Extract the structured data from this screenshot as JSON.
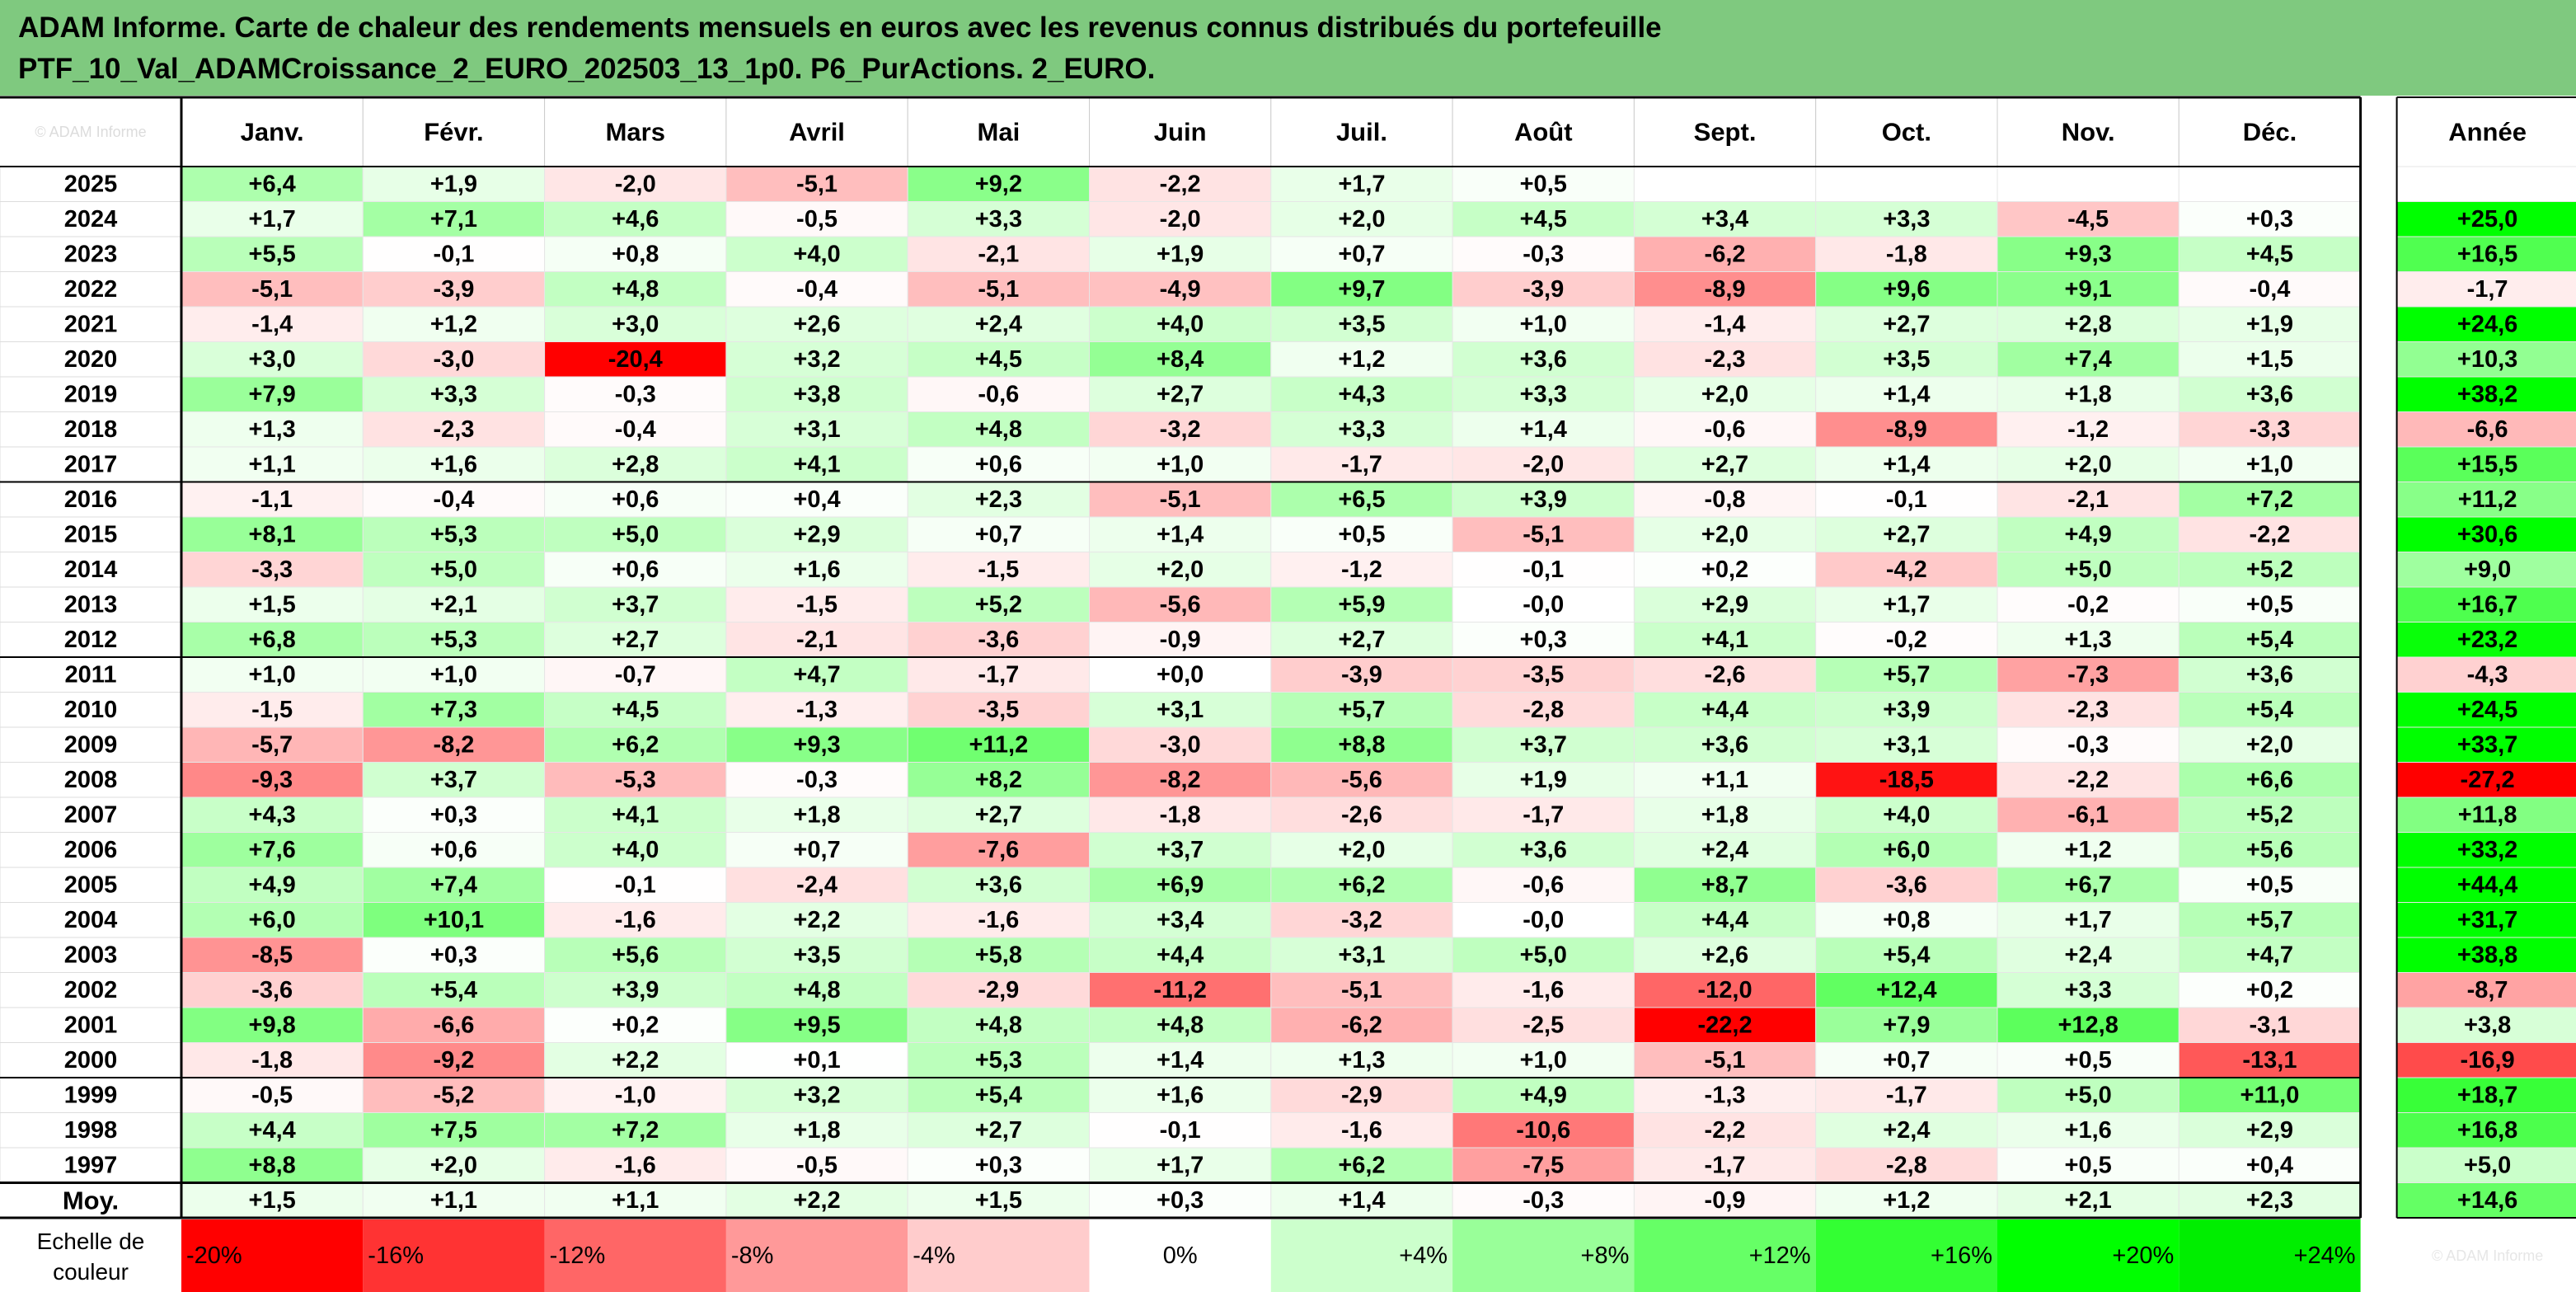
{
  "title": {
    "line1": "ADAM Informe. Carte de chaleur des rendements mensuels en euros avec les revenus connus distribués du portefeuille",
    "line2": "PTF_10_Val_ADAMCroissance_2_EURO_202503_13_1p0. P6_PurActions. 2_EURO."
  },
  "chart_data": {
    "type": "heatmap",
    "columns": [
      "Janv.",
      "Févr.",
      "Mars",
      "Avril",
      "Mai",
      "Juin",
      "Juil.",
      "Août",
      "Sept.",
      "Oct.",
      "Nov.",
      "Déc."
    ],
    "year_column": "Année",
    "corner_watermark": "© ADAM Informe",
    "rows": [
      {
        "year": "2025",
        "values": [
          "+6,4",
          "+1,9",
          "-2,0",
          "-5,1",
          "+9,2",
          "-2,2",
          "+1,7",
          "+0,5",
          "",
          "",
          "",
          ""
        ],
        "annual": ""
      },
      {
        "year": "2024",
        "values": [
          "+1,7",
          "+7,1",
          "+4,6",
          "-0,5",
          "+3,3",
          "-2,0",
          "+2,0",
          "+4,5",
          "+3,4",
          "+3,3",
          "-4,5",
          "+0,3"
        ],
        "annual": "+25,0"
      },
      {
        "year": "2023",
        "values": [
          "+5,5",
          "-0,1",
          "+0,8",
          "+4,0",
          "-2,1",
          "+1,9",
          "+0,7",
          "-0,3",
          "-6,2",
          "-1,8",
          "+9,3",
          "+4,5"
        ],
        "annual": "+16,5"
      },
      {
        "year": "2022",
        "values": [
          "-5,1",
          "-3,9",
          "+4,8",
          "-0,4",
          "-5,1",
          "-4,9",
          "+9,7",
          "-3,9",
          "-8,9",
          "+9,6",
          "+9,1",
          "-0,4"
        ],
        "annual": "-1,7"
      },
      {
        "year": "2021",
        "values": [
          "-1,4",
          "+1,2",
          "+3,0",
          "+2,6",
          "+2,4",
          "+4,0",
          "+3,5",
          "+1,0",
          "-1,4",
          "+2,7",
          "+2,8",
          "+1,9"
        ],
        "annual": "+24,6"
      },
      {
        "year": "2020",
        "values": [
          "+3,0",
          "-3,0",
          "-20,4",
          "+3,2",
          "+4,5",
          "+8,4",
          "+1,2",
          "+3,6",
          "-2,3",
          "+3,5",
          "+7,4",
          "+1,5"
        ],
        "annual": "+10,3"
      },
      {
        "year": "2019",
        "values": [
          "+7,9",
          "+3,3",
          "-0,3",
          "+3,8",
          "-0,6",
          "+2,7",
          "+4,3",
          "+3,3",
          "+2,0",
          "+1,4",
          "+1,8",
          "+3,6"
        ],
        "annual": "+38,2"
      },
      {
        "year": "2018",
        "values": [
          "+1,3",
          "-2,3",
          "-0,4",
          "+3,1",
          "+4,8",
          "-3,2",
          "+3,3",
          "+1,4",
          "-0,6",
          "-8,9",
          "-1,2",
          "-3,3"
        ],
        "annual": "-6,6"
      },
      {
        "year": "2017",
        "values": [
          "+1,1",
          "+1,6",
          "+2,8",
          "+4,1",
          "+0,6",
          "+1,0",
          "-1,7",
          "-2,0",
          "+2,7",
          "+1,4",
          "+2,0",
          "+1,0"
        ],
        "annual": "+15,5"
      },
      {
        "year": "2016",
        "values": [
          "-1,1",
          "-0,4",
          "+0,6",
          "+0,4",
          "+2,3",
          "-5,1",
          "+6,5",
          "+3,9",
          "-0,8",
          "-0,1",
          "-2,1",
          "+7,2"
        ],
        "annual": "+11,2"
      },
      {
        "year": "2015",
        "values": [
          "+8,1",
          "+5,3",
          "+5,0",
          "+2,9",
          "+0,7",
          "+1,4",
          "+0,5",
          "-5,1",
          "+2,0",
          "+2,7",
          "+4,9",
          "-2,2"
        ],
        "annual": "+30,6"
      },
      {
        "year": "2014",
        "values": [
          "-3,3",
          "+5,0",
          "+0,6",
          "+1,6",
          "-1,5",
          "+2,0",
          "-1,2",
          "-0,1",
          "+0,2",
          "-4,2",
          "+5,0",
          "+5,2"
        ],
        "annual": "+9,0"
      },
      {
        "year": "2013",
        "values": [
          "+1,5",
          "+2,1",
          "+3,7",
          "-1,5",
          "+5,2",
          "-5,6",
          "+5,9",
          "-0,0",
          "+2,9",
          "+1,7",
          "-0,2",
          "+0,5"
        ],
        "annual": "+16,7"
      },
      {
        "year": "2012",
        "values": [
          "+6,8",
          "+5,3",
          "+2,7",
          "-2,1",
          "-3,6",
          "-0,9",
          "+2,7",
          "+0,3",
          "+4,1",
          "-0,2",
          "+1,3",
          "+5,4"
        ],
        "annual": "+23,2"
      },
      {
        "year": "2011",
        "values": [
          "+1,0",
          "+1,0",
          "-0,7",
          "+4,7",
          "-1,7",
          "+0,0",
          "-3,9",
          "-3,5",
          "-2,6",
          "+5,7",
          "-7,3",
          "+3,6"
        ],
        "annual": "-4,3"
      },
      {
        "year": "2010",
        "values": [
          "-1,5",
          "+7,3",
          "+4,5",
          "-1,3",
          "-3,5",
          "+3,1",
          "+5,7",
          "-2,8",
          "+4,4",
          "+3,9",
          "-2,3",
          "+5,4"
        ],
        "annual": "+24,5"
      },
      {
        "year": "2009",
        "values": [
          "-5,7",
          "-8,2",
          "+6,2",
          "+9,3",
          "+11,2",
          "-3,0",
          "+8,8",
          "+3,7",
          "+3,6",
          "+3,1",
          "-0,3",
          "+2,0"
        ],
        "annual": "+33,7"
      },
      {
        "year": "2008",
        "values": [
          "-9,3",
          "+3,7",
          "-5,3",
          "-0,3",
          "+8,2",
          "-8,2",
          "-5,6",
          "+1,9",
          "+1,1",
          "-18,5",
          "-2,2",
          "+6,6"
        ],
        "annual": "-27,2"
      },
      {
        "year": "2007",
        "values": [
          "+4,3",
          "+0,3",
          "+4,1",
          "+1,8",
          "+2,7",
          "-1,8",
          "-2,6",
          "-1,7",
          "+1,8",
          "+4,0",
          "-6,1",
          "+5,2"
        ],
        "annual": "+11,8"
      },
      {
        "year": "2006",
        "values": [
          "+7,6",
          "+0,6",
          "+4,0",
          "+0,7",
          "-7,6",
          "+3,7",
          "+2,0",
          "+3,6",
          "+2,4",
          "+6,0",
          "+1,2",
          "+5,6"
        ],
        "annual": "+33,2"
      },
      {
        "year": "2005",
        "values": [
          "+4,9",
          "+7,4",
          "-0,1",
          "-2,4",
          "+3,6",
          "+6,9",
          "+6,2",
          "-0,6",
          "+8,7",
          "-3,6",
          "+6,7",
          "+0,5"
        ],
        "annual": "+44,4"
      },
      {
        "year": "2004",
        "values": [
          "+6,0",
          "+10,1",
          "-1,6",
          "+2,2",
          "-1,6",
          "+3,4",
          "-3,2",
          "-0,0",
          "+4,4",
          "+0,8",
          "+1,7",
          "+5,7"
        ],
        "annual": "+31,7"
      },
      {
        "year": "2003",
        "values": [
          "-8,5",
          "+0,3",
          "+5,6",
          "+3,5",
          "+5,8",
          "+4,4",
          "+3,1",
          "+5,0",
          "+2,6",
          "+5,4",
          "+2,4",
          "+4,7"
        ],
        "annual": "+38,8"
      },
      {
        "year": "2002",
        "values": [
          "-3,6",
          "+5,4",
          "+3,9",
          "+4,8",
          "-2,9",
          "-11,2",
          "-5,1",
          "-1,6",
          "-12,0",
          "+12,4",
          "+3,3",
          "+0,2"
        ],
        "annual": "-8,7"
      },
      {
        "year": "2001",
        "values": [
          "+9,8",
          "-6,6",
          "+0,2",
          "+9,5",
          "+4,8",
          "+4,8",
          "-6,2",
          "-2,5",
          "-22,2",
          "+7,9",
          "+12,8",
          "-3,1"
        ],
        "annual": "+3,8"
      },
      {
        "year": "2000",
        "values": [
          "-1,8",
          "-9,2",
          "+2,2",
          "+0,1",
          "+5,3",
          "+1,4",
          "+1,3",
          "+1,0",
          "-5,1",
          "+0,7",
          "+0,5",
          "-13,1"
        ],
        "annual": "-16,9"
      },
      {
        "year": "1999",
        "values": [
          "-0,5",
          "-5,2",
          "-1,0",
          "+3,2",
          "+5,4",
          "+1,6",
          "-2,9",
          "+4,9",
          "-1,3",
          "-1,7",
          "+5,0",
          "+11,0"
        ],
        "annual": "+18,7"
      },
      {
        "year": "1998",
        "values": [
          "+4,4",
          "+7,5",
          "+7,2",
          "+1,8",
          "+2,7",
          "-0,1",
          "-1,6",
          "-10,6",
          "-2,2",
          "+2,4",
          "+1,6",
          "+2,9"
        ],
        "annual": "+16,8"
      },
      {
        "year": "1997",
        "values": [
          "+8,8",
          "+2,0",
          "-1,6",
          "-0,5",
          "+0,3",
          "+1,7",
          "+6,2",
          "-7,5",
          "-1,7",
          "-2,8",
          "+0,5",
          "+0,4"
        ],
        "annual": "+5,0"
      }
    ],
    "average_row": {
      "label": "Moy.",
      "values": [
        "+1,5",
        "+1,1",
        "+1,1",
        "+2,2",
        "+1,5",
        "+0,3",
        "+1,4",
        "-0,3",
        "-0,9",
        "+1,2",
        "+2,1",
        "+2,3"
      ],
      "annual": "+14,6"
    },
    "color_scale": {
      "label_line1": "Echelle de",
      "label_line2": "couleur",
      "stops": [
        {
          "label": "-20%",
          "color": "#ff0000"
        },
        {
          "label": "-16%",
          "color": "#ff3333"
        },
        {
          "label": "-12%",
          "color": "#ff6666"
        },
        {
          "label": "-8%",
          "color": "#ff9999"
        },
        {
          "label": "-4%",
          "color": "#ffcccc"
        },
        {
          "label": "0%",
          "color": "#ffffff"
        },
        {
          "label": "+4%",
          "color": "#ccffcc"
        },
        {
          "label": "+8%",
          "color": "#99ff99"
        },
        {
          "label": "+12%",
          "color": "#66ff66"
        },
        {
          "label": "+16%",
          "color": "#33ff33"
        },
        {
          "label": "+20%",
          "color": "#00ff00"
        },
        {
          "label": "+24%",
          "color": "#00ee00"
        }
      ],
      "footer_watermark": "© ADAM Informe"
    },
    "colors": {
      "title_band": "#7fc97f",
      "max_red": "#ff0000",
      "max_green": "#00ff00"
    }
  }
}
